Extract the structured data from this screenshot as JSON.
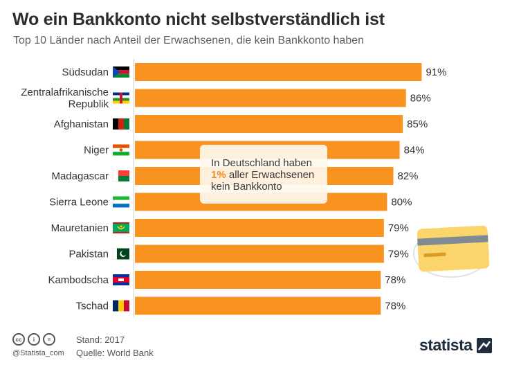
{
  "header": {
    "title": "Wo ein Bankkonto nicht selbstverständlich ist",
    "subtitle": "Top 10 Länder nach Anteil der Erwachsenen, die kein Bankkonto haben"
  },
  "chart_data": {
    "type": "bar",
    "orientation": "horizontal",
    "title": "Wo ein Bankkonto nicht selbstverständlich ist",
    "subtitle": "Top 10 Länder nach Anteil der Erwachsenen, die kein Bankkonto haben",
    "categories": [
      "Südsudan",
      "Zentralafrikanische Republik",
      "Afghanistan",
      "Niger",
      "Madagascar",
      "Sierra Leone",
      "Mauretanien",
      "Pakistan",
      "Kambodscha",
      "Tschad"
    ],
    "category_lines": [
      [
        "Südsudan"
      ],
      [
        "Zentralafrikanische",
        "Republik"
      ],
      [
        "Afghanistan"
      ],
      [
        "Niger"
      ],
      [
        "Madagascar"
      ],
      [
        "Sierra Leone"
      ],
      [
        "Mauretanien"
      ],
      [
        "Pakistan"
      ],
      [
        "Kambodscha"
      ],
      [
        "Tschad"
      ]
    ],
    "values": [
      91,
      86,
      85,
      84,
      82,
      80,
      79,
      79,
      78,
      78
    ],
    "value_labels": [
      "91%",
      "86%",
      "85%",
      "84%",
      "82%",
      "80%",
      "79%",
      "79%",
      "78%",
      "78%"
    ],
    "unit": "%",
    "xlim": [
      0,
      100
    ],
    "grid": false,
    "legend": "none",
    "bar_color": "#f7931e"
  },
  "flags": [
    "south-sudan-flag-icon",
    "central-african-republic-flag-icon",
    "afghanistan-flag-icon",
    "niger-flag-icon",
    "madagascar-flag-icon",
    "sierra-leone-flag-icon",
    "mauritania-flag-icon",
    "pakistan-flag-icon",
    "cambodia-flag-icon",
    "chad-flag-icon"
  ],
  "callout": {
    "line1": "In Deutschland haben",
    "highlight": "1%",
    "line2_rest": " aller Erwachsenen",
    "line3": "kein Bankkonto"
  },
  "footer": {
    "handle": "@Statista_com",
    "stand": "Stand: 2017",
    "source": "Quelle: World Bank",
    "brand": "statista",
    "license_icons": [
      "cc-icon",
      "attribution-icon",
      "no-derivatives-icon"
    ]
  },
  "colors": {
    "bar": "#f7931e",
    "title": "#2d2d2d",
    "highlight": "#f18b1d",
    "card": "#fbd46b"
  }
}
